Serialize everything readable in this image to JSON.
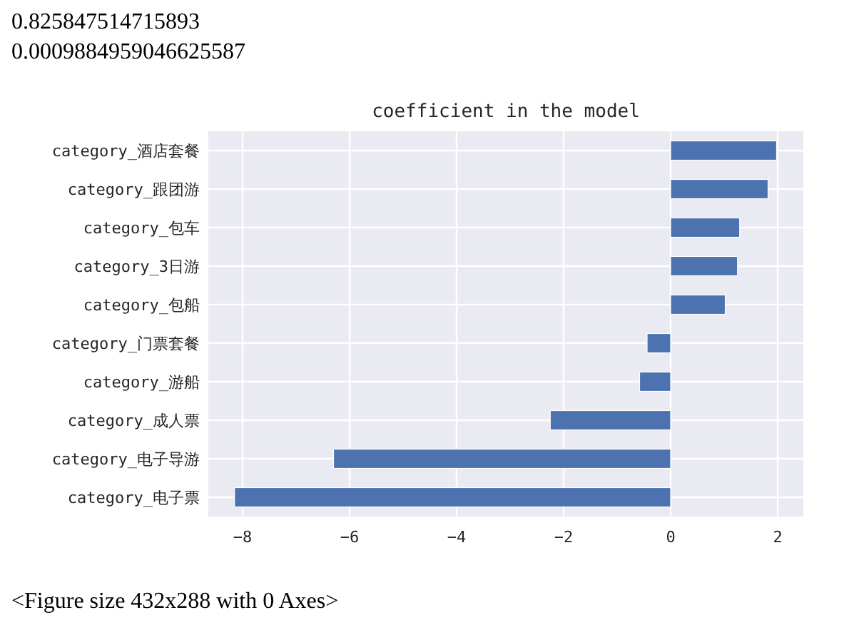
{
  "chart_data": {
    "type": "bar",
    "orientation": "horizontal",
    "title": "coefficient in the model",
    "categories": [
      "category_酒店套餐",
      "category_跟团游",
      "category_包车",
      "category_3日游",
      "category_包船",
      "category_门票套餐",
      "category_游船",
      "category_成人票",
      "category_电子导游",
      "category_电子票"
    ],
    "values": [
      1.98,
      1.82,
      1.29,
      1.25,
      1.02,
      -0.44,
      -0.58,
      -2.25,
      -6.3,
      -8.15
    ],
    "color": "#4c72b0",
    "xlim": [
      -8.64,
      2.48
    ],
    "xticks": [
      {
        "value": -8,
        "label": "−8"
      },
      {
        "value": -6,
        "label": "−6"
      },
      {
        "value": -4,
        "label": "−4"
      },
      {
        "value": -2,
        "label": "−2"
      },
      0,
      2
    ],
    "grid": true,
    "annotations": [
      "0.825847514715893",
      "0.0009884959046625587",
      "<Figure size 432x288 with 0 Axes>"
    ]
  }
}
